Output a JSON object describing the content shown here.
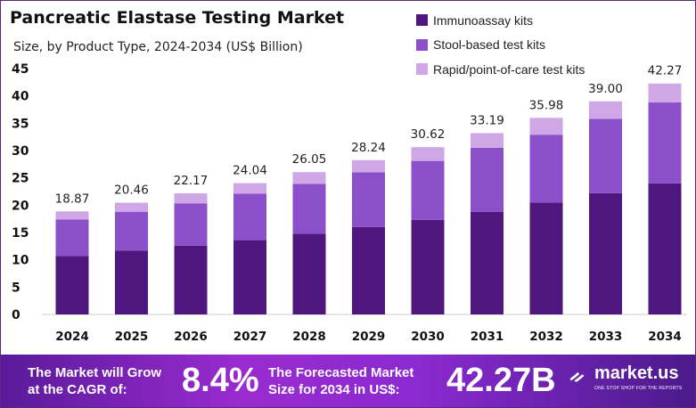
{
  "chart_data": {
    "type": "bar",
    "stacked": true,
    "title": "Pancreatic Elastase Testing Market",
    "subtitle": "Size, by Product Type, 2024-2034 (US$ Billion)",
    "categories": [
      "2024",
      "2025",
      "2026",
      "2027",
      "2028",
      "2029",
      "2030",
      "2031",
      "2032",
      "2033",
      "2034"
    ],
    "series": [
      {
        "name": "Immunoassay kits",
        "color": "#4e177f",
        "values": [
          10.7,
          11.7,
          12.6,
          13.6,
          14.8,
          16.0,
          17.3,
          18.8,
          20.5,
          22.2,
          24.0
        ]
      },
      {
        "name": "Stool-based test kits",
        "color": "#8a4fc9",
        "values": [
          6.7,
          7.1,
          7.7,
          8.5,
          9.1,
          10.0,
          10.8,
          11.7,
          12.4,
          13.6,
          14.8
        ]
      },
      {
        "name": "Rapid/point-of-care test kits",
        "color": "#cfa6e6",
        "values": [
          1.47,
          1.66,
          1.87,
          1.94,
          2.15,
          2.24,
          2.52,
          2.69,
          3.08,
          3.2,
          3.47
        ]
      }
    ],
    "totals": [
      "18.87",
      "20.46",
      "22.17",
      "24.04",
      "26.05",
      "28.24",
      "30.62",
      "33.19",
      "35.98",
      "39.00",
      "42.27"
    ],
    "yticks": [
      "0",
      "5",
      "10",
      "15",
      "20",
      "25",
      "30",
      "35",
      "40",
      "45"
    ],
    "ylim": [
      0,
      45
    ],
    "grid": false,
    "legend_placement": "top-right"
  },
  "banner": {
    "cagr_label": "The Market will Grow at the CAGR of:",
    "cagr_value": "8.4%",
    "forecast_label": "The Forecasted Market Size for 2034 in US$:",
    "forecast_value": "42.27B",
    "logo_text": "market.us",
    "logo_tagline": "ONE STOP SHOP FOR THE REPORTS"
  }
}
